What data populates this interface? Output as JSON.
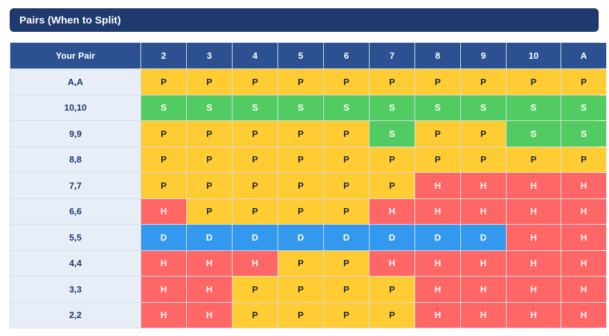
{
  "header": {
    "title": "Pairs (When to Split)"
  },
  "table": {
    "columns": [
      "Your Pair",
      "2",
      "3",
      "4",
      "5",
      "6",
      "7",
      "8",
      "9",
      "10",
      "A"
    ],
    "rows": [
      {
        "pair": "A,A",
        "cells": [
          "P",
          "P",
          "P",
          "P",
          "P",
          "P",
          "P",
          "P",
          "P",
          "P"
        ]
      },
      {
        "pair": "10,10",
        "cells": [
          "S",
          "S",
          "S",
          "S",
          "S",
          "S",
          "S",
          "S",
          "S",
          "S"
        ]
      },
      {
        "pair": "9,9",
        "cells": [
          "P",
          "P",
          "P",
          "P",
          "P",
          "S",
          "P",
          "P",
          "S",
          "S"
        ]
      },
      {
        "pair": "8,8",
        "cells": [
          "P",
          "P",
          "P",
          "P",
          "P",
          "P",
          "P",
          "P",
          "P",
          "P"
        ]
      },
      {
        "pair": "7,7",
        "cells": [
          "P",
          "P",
          "P",
          "P",
          "P",
          "P",
          "H",
          "H",
          "H",
          "H"
        ]
      },
      {
        "pair": "6,6",
        "cells": [
          "H",
          "P",
          "P",
          "P",
          "P",
          "H",
          "H",
          "H",
          "H",
          "H"
        ]
      },
      {
        "pair": "5,5",
        "cells": [
          "D",
          "D",
          "D",
          "D",
          "D",
          "D",
          "D",
          "D",
          "H",
          "H"
        ]
      },
      {
        "pair": "4,4",
        "cells": [
          "H",
          "H",
          "H",
          "P",
          "P",
          "H",
          "H",
          "H",
          "H",
          "H"
        ]
      },
      {
        "pair": "3,3",
        "cells": [
          "H",
          "H",
          "P",
          "P",
          "P",
          "P",
          "H",
          "H",
          "H",
          "H"
        ]
      },
      {
        "pair": "2,2",
        "cells": [
          "H",
          "H",
          "P",
          "P",
          "P",
          "P",
          "H",
          "H",
          "H",
          "H"
        ]
      }
    ],
    "cell_colors": {
      "P": {
        "bg": "#ffcc33",
        "fg": "#1f2937"
      },
      "S": {
        "bg": "#52cc62",
        "fg": "#ffffff"
      },
      "H": {
        "bg": "#ff6666",
        "fg": "#ffffff"
      },
      "D": {
        "bg": "#3399ee",
        "fg": "#ffffff"
      }
    }
  }
}
